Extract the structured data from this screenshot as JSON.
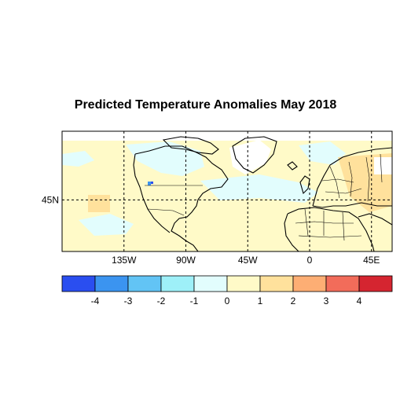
{
  "title": "Predicted Temperature Anomalies May 2018",
  "map": {
    "lat_labels": [
      {
        "text": "45N",
        "lat": 45
      }
    ],
    "lon_labels": [
      {
        "text": "135W",
        "lon": -135
      },
      {
        "text": "90W",
        "lon": -90
      },
      {
        "text": "45W",
        "lon": -45
      },
      {
        "text": "0",
        "lon": 0
      },
      {
        "text": "45E",
        "lon": 45
      }
    ],
    "lon_range": [
      -180,
      60
    ],
    "lat_range": [
      15,
      85
    ],
    "gridlines": "dashed"
  },
  "colorbar": {
    "colors": [
      "#2a4ef0",
      "#3b94f0",
      "#62c4f5",
      "#9ef0f8",
      "#e2fdfd",
      "#fffac8",
      "#ffe19c",
      "#fdae74",
      "#f26c5a",
      "#d52530"
    ],
    "tick_labels": [
      "-4",
      "-3",
      "-2",
      "-1",
      "0",
      "1",
      "2",
      "3",
      "4"
    ]
  },
  "colors": {
    "base_anomaly": "#fffac8",
    "cool_anomaly": "#e2fdfd",
    "warm_anomaly": "#ffe19c",
    "strong_cool": "#3b94f0",
    "land_outline": "#000000"
  }
}
